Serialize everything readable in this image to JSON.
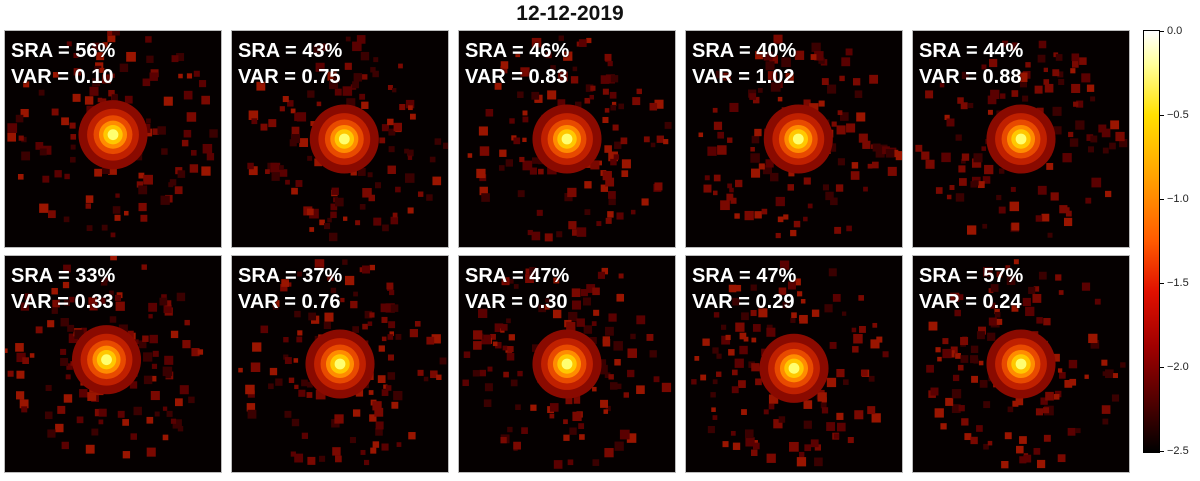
{
  "title": "12-12-2019",
  "panels": [
    {
      "sra": "SRA = 56%",
      "var": "VAR = 0.10"
    },
    {
      "sra": "SRA = 43%",
      "var": "VAR = 0.75"
    },
    {
      "sra": "SRA = 46%",
      "var": "VAR = 0.83"
    },
    {
      "sra": "SRA = 40%",
      "var": "VAR = 1.02"
    },
    {
      "sra": "SRA = 44%",
      "var": "VAR = 0.88"
    },
    {
      "sra": "SRA = 33%",
      "var": "VAR = 0.33"
    },
    {
      "sra": "SRA = 37%",
      "var": "VAR = 0.76"
    },
    {
      "sra": "SRA = 47%",
      "var": "VAR = 0.30"
    },
    {
      "sra": "SRA = 47%",
      "var": "VAR = 0.29"
    },
    {
      "sra": "SRA = 57%",
      "var": "VAR = 0.24"
    }
  ],
  "colorbar": {
    "ticks": [
      "0.0",
      "−0.5",
      "−1.0",
      "−1.5",
      "−2.0",
      "−2.5"
    ],
    "colors": {
      "max": "#ffffff",
      "mid": "#ff5a00",
      "min": "#000000"
    }
  }
}
